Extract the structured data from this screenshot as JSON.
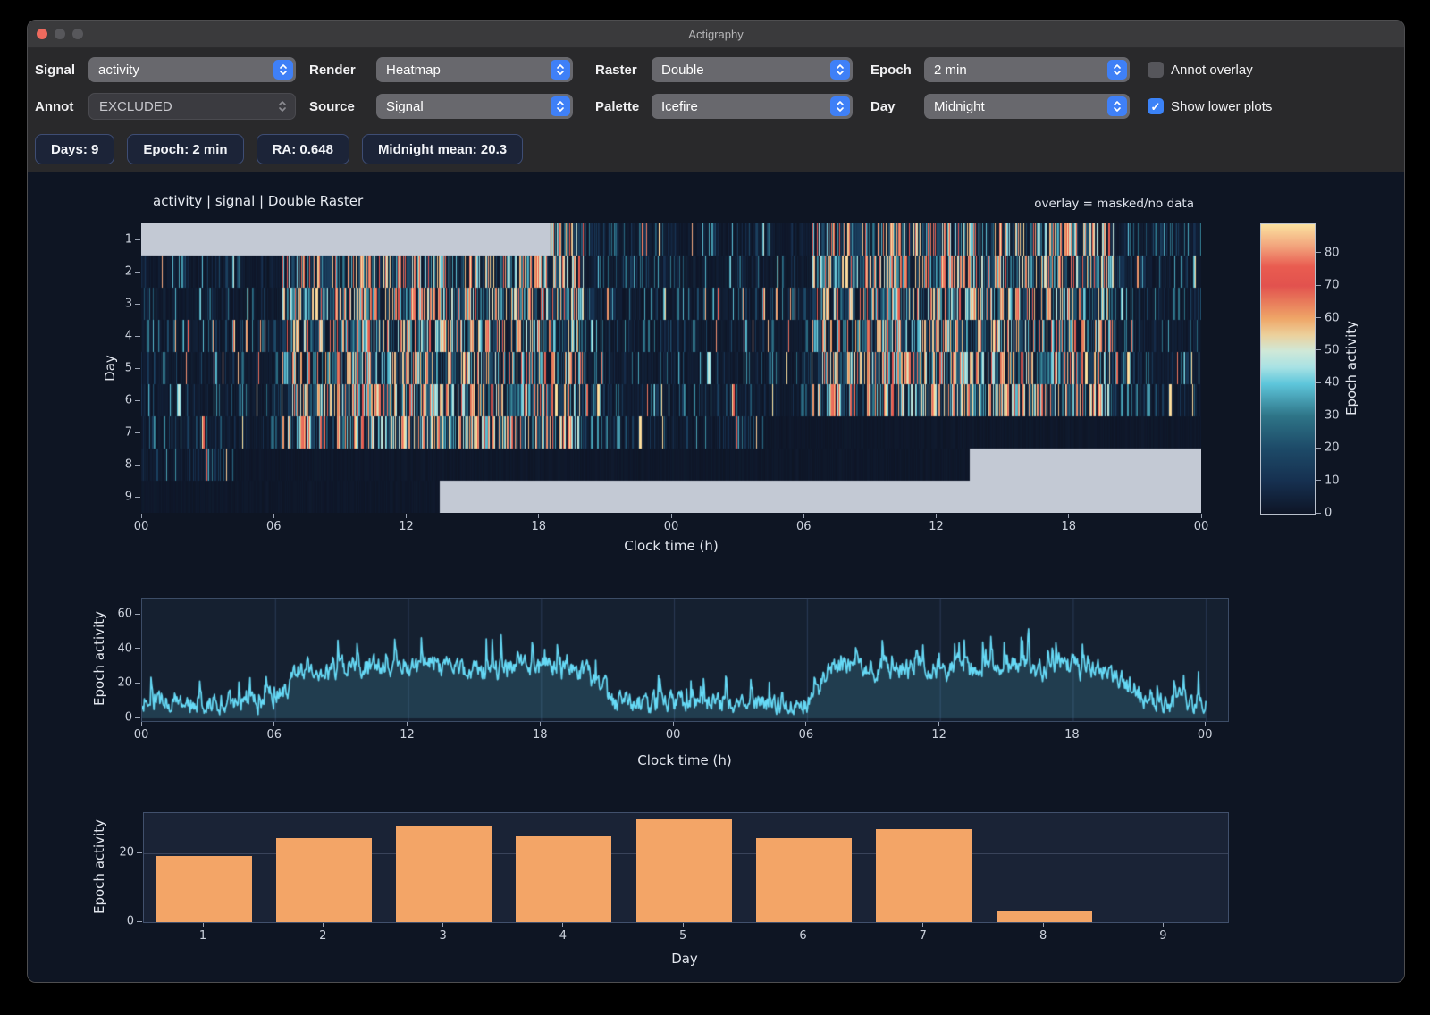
{
  "window": {
    "title": "Actigraphy"
  },
  "toolbar": {
    "signal": {
      "label": "Signal",
      "value": "activity"
    },
    "render": {
      "label": "Render",
      "value": "Heatmap"
    },
    "raster": {
      "label": "Raster",
      "value": "Double"
    },
    "epoch": {
      "label": "Epoch",
      "value": "2 min"
    },
    "annot": {
      "label": "Annot",
      "value": "EXCLUDED",
      "disabled": true
    },
    "source": {
      "label": "Source",
      "value": "Signal"
    },
    "palette": {
      "label": "Palette",
      "value": "Icefire"
    },
    "day": {
      "label": "Day",
      "value": "Midnight"
    },
    "annot_overlay": {
      "label": "Annot overlay",
      "checked": false
    },
    "show_lower": {
      "label": "Show lower plots",
      "checked": true
    }
  },
  "stats": [
    "Days: 9",
    "Epoch: 2 min",
    "RA: 0.648",
    "Midnight mean: 20.3"
  ],
  "chart_data": {
    "heatmap": {
      "type": "heatmap",
      "title": "activity | signal | Double Raster",
      "note": "overlay = masked/no data",
      "xlabel": "Clock time (h)",
      "ylabel": "Day",
      "x_ticks": [
        "00",
        "06",
        "12",
        "18",
        "00",
        "06",
        "12",
        "18",
        "00"
      ],
      "y_ticks": [
        "1",
        "2",
        "3",
        "4",
        "5",
        "6",
        "7",
        "8",
        "9"
      ],
      "days": 9,
      "hours_per_row": 48,
      "epoch_minutes": 2,
      "masked_hours": {
        "1": [
          [
            0,
            18.5
          ]
        ],
        "9": [
          [
            13.5,
            24
          ]
        ]
      },
      "flat_hours": {
        "8": [
          [
            4.2,
            24
          ]
        ],
        "9": [
          [
            0,
            13.5
          ]
        ]
      },
      "masked_color": "#c3c9d4",
      "seed": 11,
      "colorbar": {
        "label": "Epoch activity",
        "ticks": [
          0,
          10,
          20,
          30,
          40,
          50,
          60,
          70,
          80
        ],
        "vmax": 89,
        "palette": "Icefire",
        "stops": [
          [
            0,
            "#0e1526"
          ],
          [
            10,
            "#163050"
          ],
          [
            20,
            "#1d4a68"
          ],
          [
            30,
            "#2e7487"
          ],
          [
            40,
            "#5ec6db"
          ],
          [
            45,
            "#a8e2e4"
          ],
          [
            50,
            "#cfe8d8"
          ],
          [
            55,
            "#ecd09b"
          ],
          [
            60,
            "#efa668"
          ],
          [
            70,
            "#e2524e"
          ],
          [
            76,
            "#e95c50"
          ],
          [
            82,
            "#f2a17b"
          ],
          [
            89,
            "#fbe2a0"
          ]
        ]
      }
    },
    "line": {
      "type": "line",
      "xlabel": "Clock time (h)",
      "ylabel": "Epoch activity",
      "x_ticks": [
        "00",
        "06",
        "12",
        "18",
        "00",
        "06",
        "12",
        "18",
        "00"
      ],
      "y_ticks": [
        0,
        20,
        40,
        60
      ],
      "ylim": [
        0,
        71
      ],
      "hours": 48,
      "color": "#66d9f5",
      "fill": "rgba(102,217,245,0.16)",
      "seed": 7,
      "profile": {
        "night": 8.5,
        "day": 29,
        "rise": [
          6,
          7
        ],
        "fall": [
          19.5,
          21
        ],
        "late": 9.5,
        "noise": 13,
        "spike_prob": 0.05,
        "spike_amp": 22,
        "max": 67
      }
    },
    "bars": {
      "type": "bar",
      "xlabel": "Day",
      "ylabel": "Epoch activity",
      "categories": [
        "1",
        "2",
        "3",
        "4",
        "5",
        "6",
        "7",
        "8",
        "9"
      ],
      "values": [
        19.3,
        24.5,
        28.1,
        24.9,
        29.9,
        24.4,
        27.0,
        3.0,
        0
      ],
      "y_ticks": [
        0,
        20
      ],
      "ylim": [
        0,
        31.7
      ],
      "color": "#f3a567"
    }
  }
}
